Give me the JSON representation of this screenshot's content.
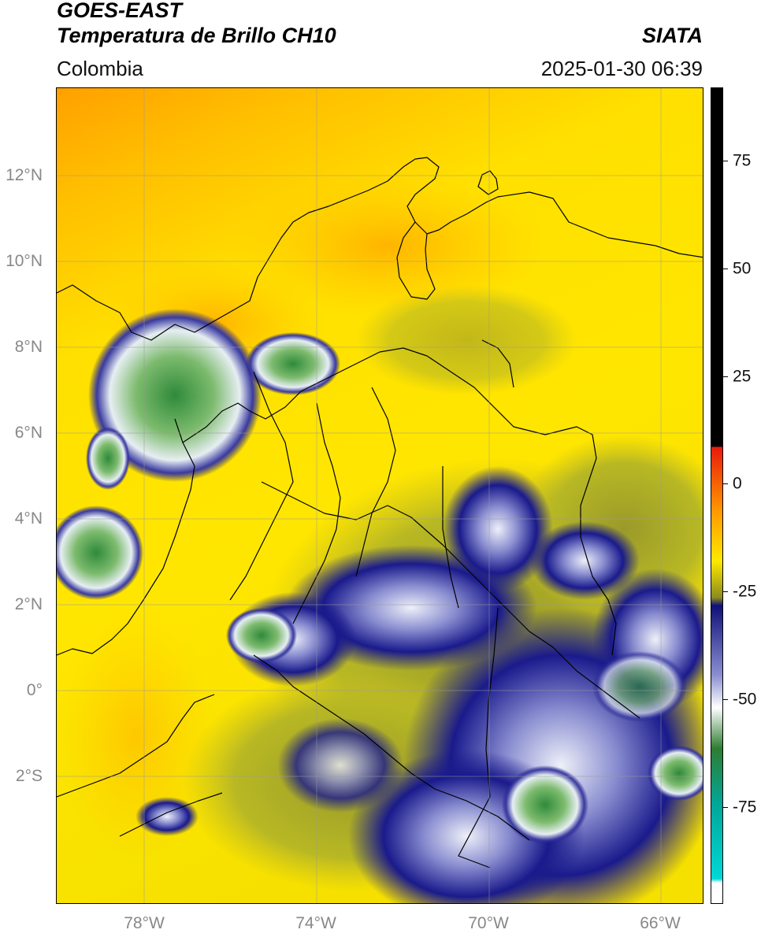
{
  "header": {
    "satellite": "GOES-EAST",
    "product": "Temperatura de Brillo CH10",
    "region": "Colombia",
    "agency": "SIATA",
    "timestamp": "2025-01-30 06:39"
  },
  "map": {
    "lat_ticks": [
      "12°N",
      "10°N",
      "8°N",
      "6°N",
      "4°N",
      "2°N",
      "0°",
      "2°S"
    ],
    "lon_ticks": [
      "78°W",
      "74°W",
      "70°W",
      "66°W"
    ]
  },
  "colorbar": {
    "tick_labels": [
      "75",
      "50",
      "25",
      "0",
      "-25",
      "-50",
      "-75"
    ],
    "colors": {
      "black": "#000000",
      "red": "#e81a0a",
      "orange": "#ff9a00",
      "yellow": "#ffe800",
      "olive": "#8c8c1e",
      "navy": "#10107a",
      "white": "#ffffff",
      "green": "#2e7d32",
      "cyan": "#00d8d8"
    }
  },
  "colors": {
    "cloud_cold": "#1a1a8c",
    "cloud_very_cold": "#e8ecf6",
    "cloud_coldest": "#3c8c3c",
    "warm_background": "#ffd000",
    "boundaries": "#000000",
    "grid": "#a0a0a0"
  }
}
